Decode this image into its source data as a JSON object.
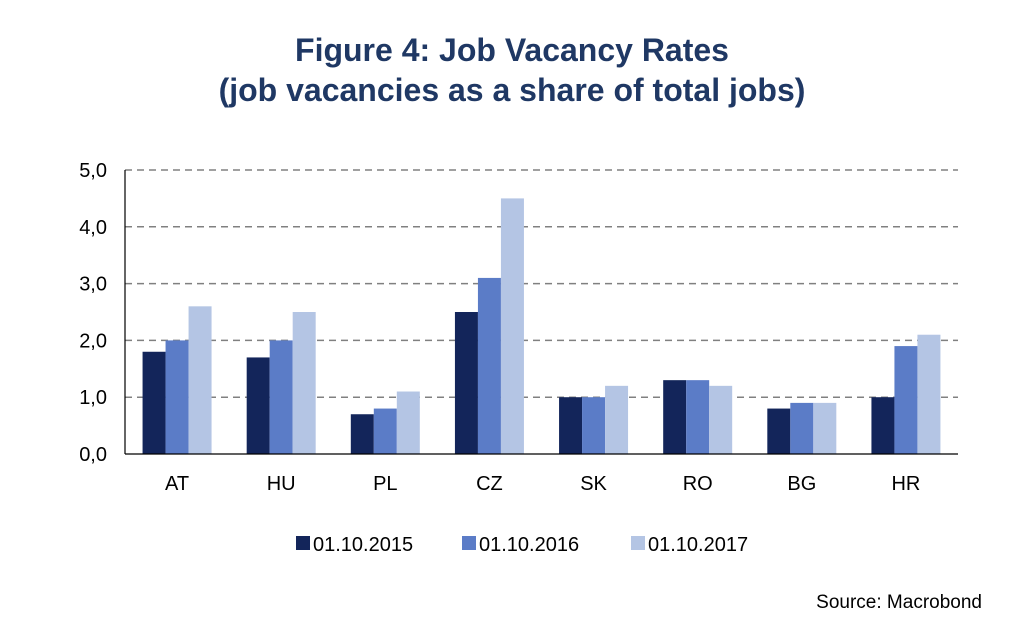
{
  "title": {
    "line1": "Figure 4: Job Vacancy Rates",
    "line2": "(job vacancies as a share of total jobs)"
  },
  "source": "Source: Macrobond",
  "chart_data": {
    "type": "bar",
    "categories": [
      "AT",
      "HU",
      "PL",
      "CZ",
      "SK",
      "RO",
      "BG",
      "HR"
    ],
    "series": [
      {
        "name": "01.10.2015",
        "color": "#13255a",
        "values": [
          1.8,
          1.7,
          0.7,
          2.5,
          1.0,
          1.3,
          0.8,
          1.0
        ]
      },
      {
        "name": "01.10.2016",
        "color": "#5b7cc7",
        "values": [
          2.0,
          2.0,
          0.8,
          3.1,
          1.0,
          1.3,
          0.9,
          1.9
        ]
      },
      {
        "name": "01.10.2017",
        "color": "#b4c5e4",
        "values": [
          2.6,
          2.5,
          1.1,
          4.5,
          1.2,
          1.2,
          0.9,
          2.1
        ]
      }
    ],
    "ylim": [
      0,
      5
    ],
    "yticks": [
      "0,0",
      "1,0",
      "2,0",
      "3,0",
      "4,0",
      "5,0"
    ],
    "grid": true,
    "legend_position": "bottom"
  }
}
